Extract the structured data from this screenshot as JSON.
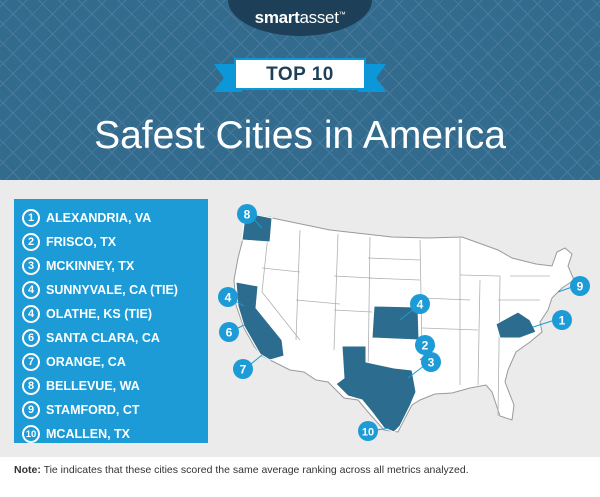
{
  "brand": {
    "logo_bold": "smart",
    "logo_regular": "asset",
    "mark": "™"
  },
  "header": {
    "badge": "TOP 10",
    "title": "Safest Cities in America"
  },
  "cities": [
    {
      "rank": "1",
      "name": "ALEXANDRIA, VA"
    },
    {
      "rank": "2",
      "name": "FRISCO, TX"
    },
    {
      "rank": "3",
      "name": "MCKINNEY, TX"
    },
    {
      "rank": "4",
      "name": "SUNNYVALE, CA (TIE)"
    },
    {
      "rank": "4",
      "name": "OLATHE, KS (TIE)"
    },
    {
      "rank": "6",
      "name": "SANTA CLARA, CA"
    },
    {
      "rank": "7",
      "name": "ORANGE, CA"
    },
    {
      "rank": "8",
      "name": "BELLEVUE, WA"
    },
    {
      "rank": "9",
      "name": "STAMFORD, CT"
    },
    {
      "rank": "10",
      "name": "MCALLEN, TX"
    }
  ],
  "map_markers": [
    {
      "rank": "1",
      "state": "VA"
    },
    {
      "rank": "2",
      "state": "TX"
    },
    {
      "rank": "3",
      "state": "TX"
    },
    {
      "rank": "4",
      "state": "CA"
    },
    {
      "rank": "4",
      "state": "KS"
    },
    {
      "rank": "6",
      "state": "CA"
    },
    {
      "rank": "7",
      "state": "CA"
    },
    {
      "rank": "8",
      "state": "WA"
    },
    {
      "rank": "9",
      "state": "CT"
    },
    {
      "rank": "10",
      "state": "TX"
    }
  ],
  "footnote": {
    "label": "Note:",
    "text": " Tie indicates that these cities scored the same average ranking across all metrics analyzed."
  },
  "colors": {
    "header": "#336b8f",
    "accent": "#0c98d8",
    "highlight_state": "#2b6c8f",
    "state_fill": "#ffffff",
    "background": "#ebebeb"
  }
}
